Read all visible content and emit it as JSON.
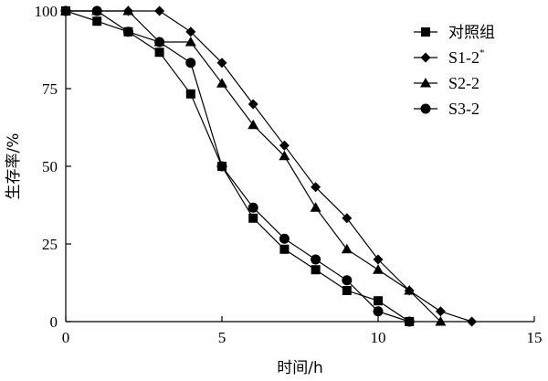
{
  "chart_data": {
    "type": "line",
    "xlabel": "时间/h",
    "ylabel": "生存率/%",
    "xlim": [
      0,
      15
    ],
    "ylim": [
      0,
      100
    ],
    "x_ticks": [
      0,
      5,
      10,
      15
    ],
    "y_ticks": [
      0,
      25,
      50,
      75,
      100
    ],
    "grid": false,
    "legend_position": "top-right",
    "series": [
      {
        "name": "对照组",
        "marker": "square",
        "x": [
          0,
          1,
          2,
          3,
          4,
          5,
          6,
          7,
          8,
          9,
          10,
          11
        ],
        "y": [
          100,
          96.7,
          93.3,
          86.7,
          73.3,
          50,
          33.3,
          23.3,
          16.7,
          10,
          6.7,
          0
        ]
      },
      {
        "name": "S1-2",
        "name_superscript": "*",
        "marker": "diamond",
        "x": [
          0,
          1,
          2,
          3,
          4,
          5,
          6,
          7,
          8,
          9,
          10,
          11,
          12,
          13
        ],
        "y": [
          100,
          100,
          100,
          100,
          93.3,
          83.3,
          70,
          56.7,
          43.3,
          33.3,
          20,
          10,
          3.3,
          0
        ]
      },
      {
        "name": "S2-2",
        "marker": "triangle",
        "x": [
          0,
          1,
          2,
          3,
          4,
          5,
          6,
          7,
          8,
          9,
          10,
          11,
          12
        ],
        "y": [
          100,
          100,
          100,
          90,
          90,
          76.7,
          63.3,
          53.3,
          36.7,
          23.3,
          16.7,
          10,
          0
        ]
      },
      {
        "name": "S3-2",
        "marker": "circle",
        "x": [
          0,
          1,
          2,
          3,
          4,
          5,
          6,
          7,
          8,
          9,
          10,
          11
        ],
        "y": [
          100,
          100,
          93.3,
          90,
          83.3,
          50,
          36.7,
          26.7,
          20,
          13.3,
          3.3,
          0
        ]
      }
    ]
  }
}
